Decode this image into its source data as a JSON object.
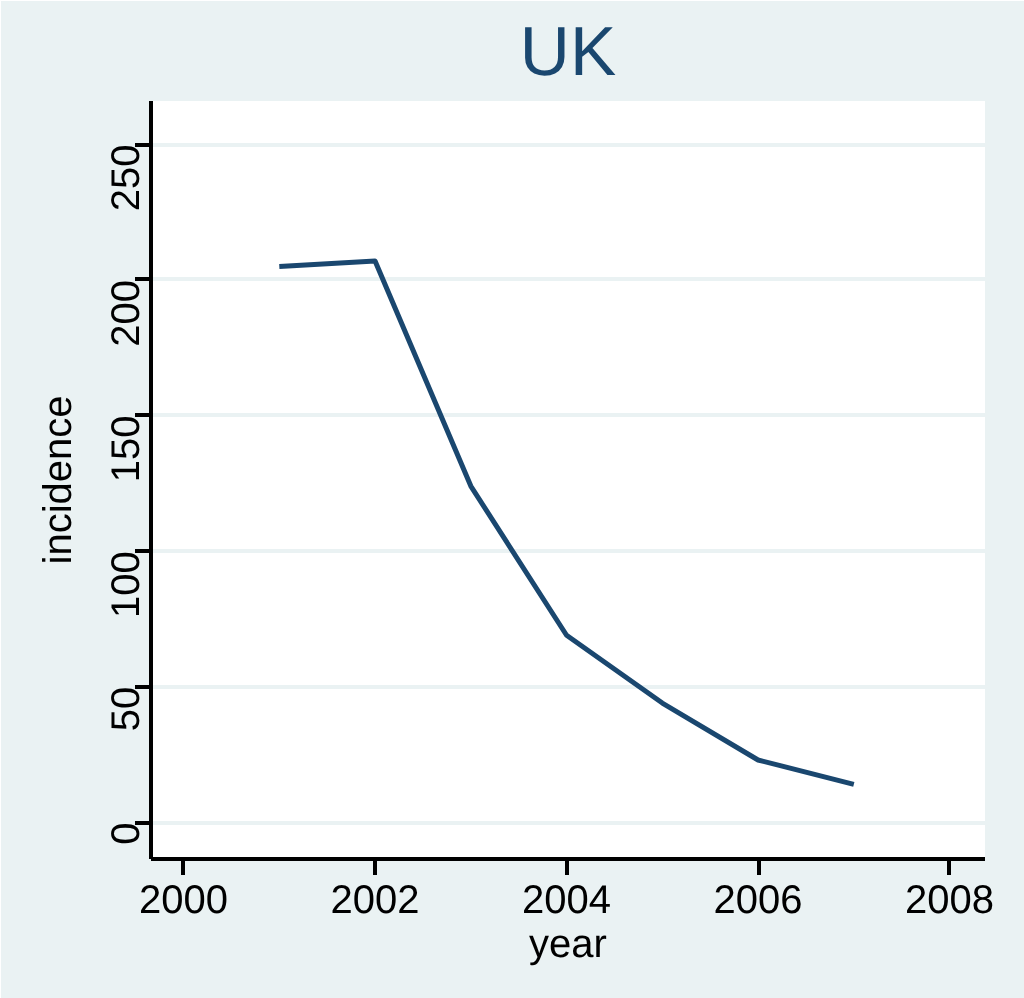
{
  "chart_data": {
    "type": "line",
    "title": "UK",
    "xlabel": "year",
    "ylabel": "incidence",
    "x": [
      2001,
      2002,
      2003,
      2004,
      2005,
      2006,
      2007
    ],
    "series": [
      {
        "color": "#1a476f",
        "values": [
          205,
          207,
          124,
          69,
          44,
          23,
          14
        ]
      }
    ],
    "xlim": [
      1999.66,
      2008.37
    ],
    "ylim": [
      -13.5,
      266
    ],
    "xticks": [
      2000,
      2002,
      2004,
      2006,
      2008
    ],
    "yticks": [
      0,
      50,
      100,
      150,
      200,
      250
    ],
    "grid": "y",
    "marker": "none",
    "line_style": "solid"
  }
}
